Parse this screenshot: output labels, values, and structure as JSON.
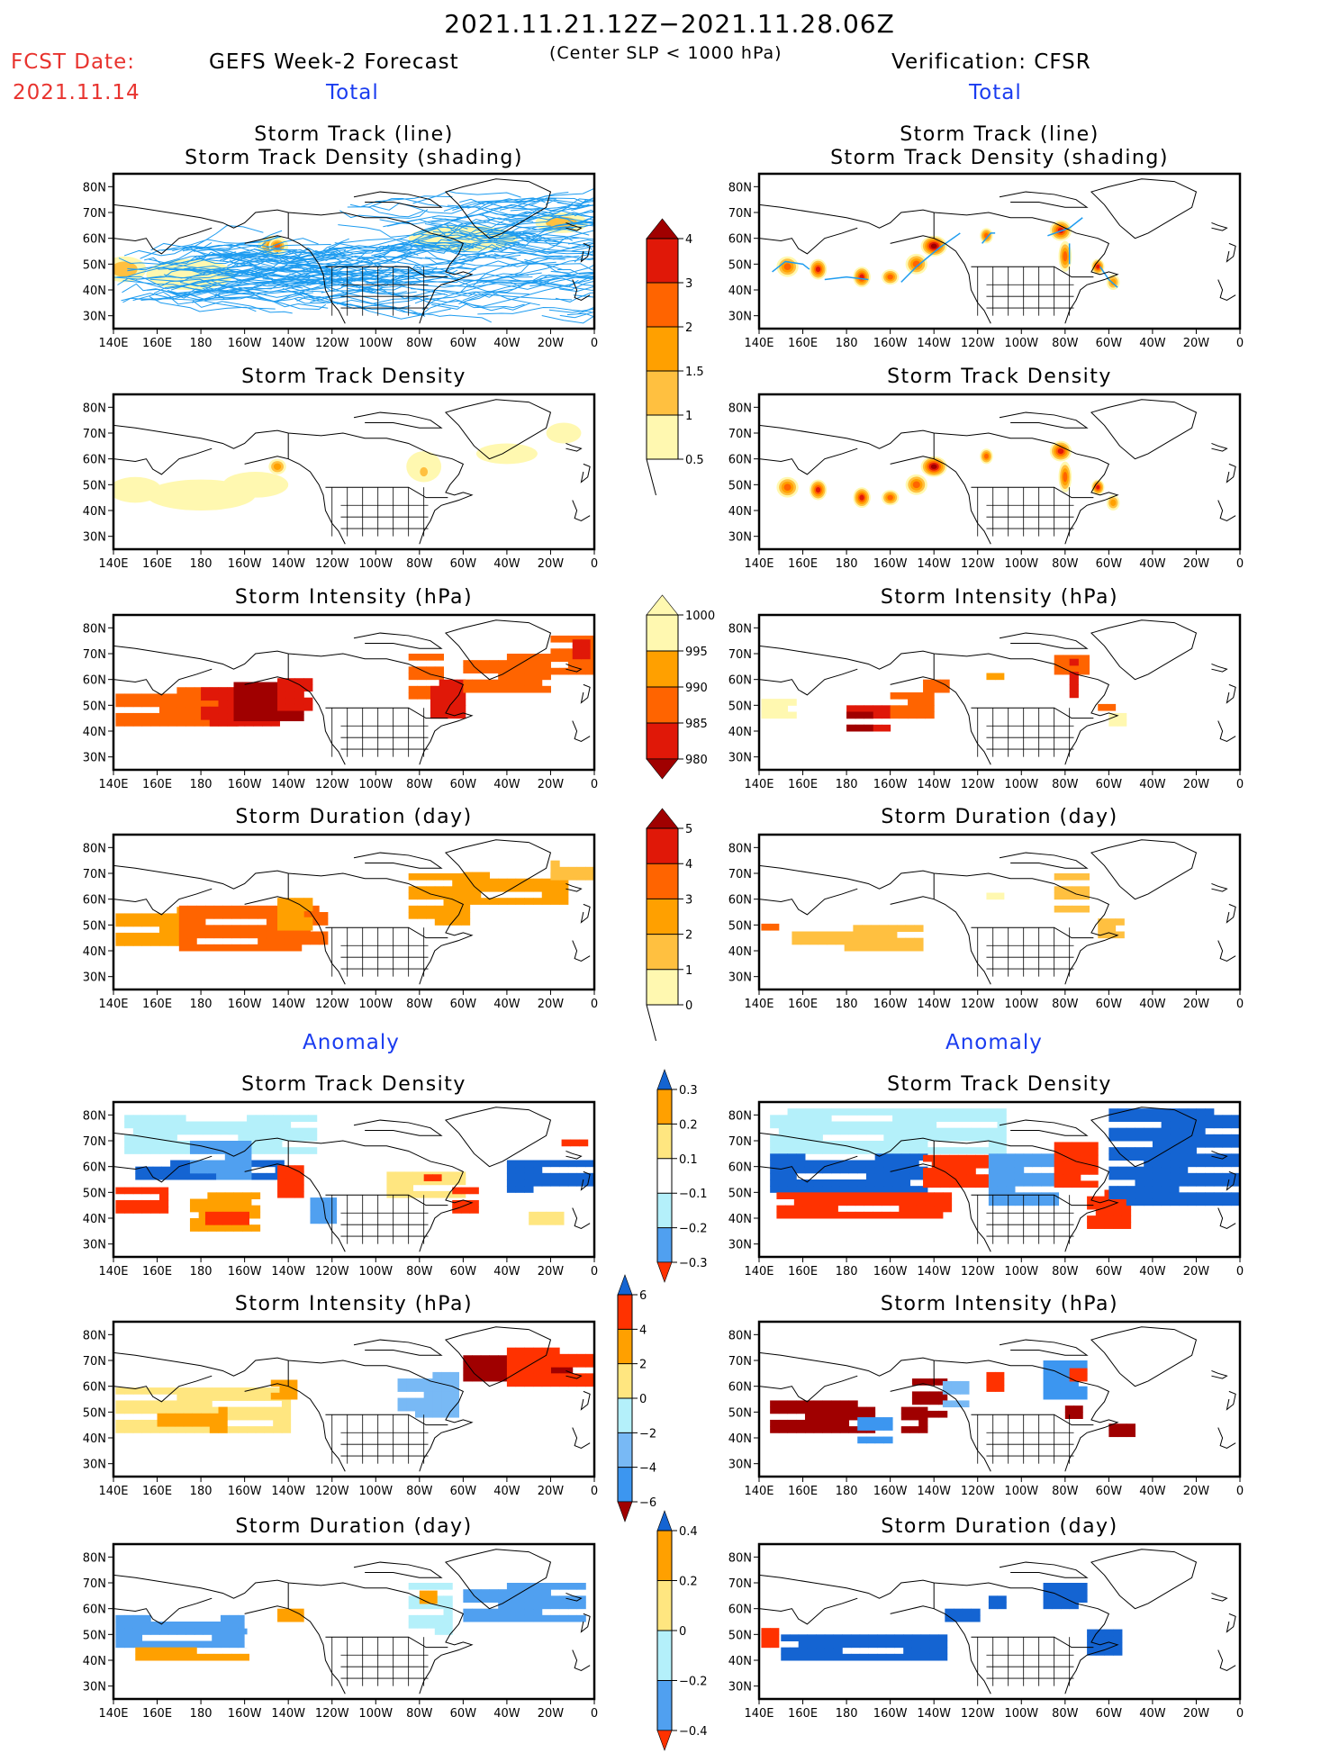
{
  "header": {
    "period": "2021.11.21.12Z−2021.11.28.06Z",
    "fcst_label": "FCST Date:",
    "fcst_date": "2021.11.14",
    "left_title": "GEFS Week-2 Forecast",
    "criterion": "(Center SLP < 1000 hPa)",
    "right_title": "Verification: CFSR",
    "total_left": "Total",
    "total_right": "Total",
    "anomaly_left": "Anomaly",
    "anomaly_right": "Anomaly"
  },
  "axes": {
    "lat_ticks": [
      "30N",
      "40N",
      "50N",
      "60N",
      "70N",
      "80N"
    ],
    "lat_values": [
      30,
      40,
      50,
      60,
      70,
      80
    ],
    "lon_ticks": [
      "140E",
      "160E",
      "180",
      "160W",
      "140W",
      "120W",
      "100W",
      "80W",
      "60W",
      "40W",
      "20W",
      "0"
    ],
    "lon_values": [
      140,
      160,
      180,
      200,
      220,
      240,
      260,
      280,
      300,
      320,
      340,
      360
    ],
    "lon_range": [
      140,
      360
    ],
    "lat_range": [
      25,
      85
    ]
  },
  "colors": {
    "track_line": "#1e9cf0",
    "scale_warm": [
      "#fff8b0",
      "#ffc040",
      "#ffa000",
      "#ff6400",
      "#e01808",
      "#a00000"
    ],
    "scale_anom": [
      "#1464d2",
      "#50a0f0",
      "#b4f0fa",
      "#ffffff",
      "#ffe680",
      "#ffa000",
      "#ff3200"
    ],
    "scale_anom6": [
      "#1464d2",
      "#3c96f0",
      "#78b9f5",
      "#b4f0fa",
      "#ffe680",
      "#ffa000",
      "#ff3200",
      "#a00000"
    ]
  },
  "colorbars": [
    {
      "name": "density",
      "labels": [
        "0.5",
        "1",
        "1.5",
        "2",
        "3",
        "4"
      ],
      "colors": [
        "#fff8b0",
        "#ffc040",
        "#ffa000",
        "#ff6400",
        "#e01808",
        "#a00000"
      ],
      "lower_open": true
    },
    {
      "name": "intensity",
      "labels": [
        "1000",
        "995",
        "990",
        "985",
        "980"
      ],
      "colors": [
        "#fff8b0",
        "#ffa000",
        "#ff6400",
        "#e01808",
        "#a00000"
      ],
      "reverse": true
    },
    {
      "name": "duration",
      "labels": [
        "0",
        "1",
        "2",
        "3",
        "4",
        "5"
      ],
      "colors": [
        "#fff8b0",
        "#ffc040",
        "#ffa000",
        "#ff6400",
        "#e01808",
        "#a00000"
      ],
      "lower_open": true
    },
    {
      "name": "density-anomaly",
      "labels": [
        "0.3",
        "0.2",
        "0.1",
        "−0.1",
        "−0.2",
        "−0.3"
      ],
      "colors": [
        "#ff3200",
        "#ffa000",
        "#ffe680",
        "#ffffff",
        "#b4f0fa",
        "#50a0f0",
        "#1464d2"
      ]
    },
    {
      "name": "intensity-anomaly",
      "labels": [
        "6",
        "4",
        "2",
        "0",
        "−2",
        "−4",
        "−6"
      ],
      "colors": [
        "#a00000",
        "#ff3200",
        "#ffa000",
        "#ffe680",
        "#b4f0fa",
        "#78b9f5",
        "#3c96f0",
        "#1464d2"
      ]
    },
    {
      "name": "duration-anomaly",
      "labels": [
        "0.4",
        "0.2",
        "0",
        "−0.2",
        "−0.4"
      ],
      "colors": [
        "#ff3200",
        "#ffa000",
        "#ffe680",
        "#b4f0fa",
        "#50a0f0",
        "#1464d2"
      ]
    }
  ],
  "chart_data": [
    {
      "type": "heatmap",
      "panel": "fcst-track",
      "title": "Storm Track (line)\nStorm Track Density (shading)",
      "title1": "Storm Track (line)",
      "title2": "Storm Track Density (shading)",
      "tracks": "many",
      "blobs": [
        [
          145,
          48,
          10,
          5,
          1
        ],
        [
          175,
          46,
          20,
          6,
          0
        ],
        [
          213,
          57,
          7,
          4,
          2
        ],
        [
          215,
          57,
          4,
          3,
          3
        ],
        [
          300,
          60,
          25,
          5,
          0
        ],
        [
          345,
          66,
          12,
          4,
          1
        ]
      ]
    },
    {
      "type": "heatmap",
      "panel": "obs-track",
      "title1": "Storm Track (line)",
      "title2": "Storm Track Density (shading)",
      "blobs": [
        [
          153,
          49,
          5,
          4,
          3
        ],
        [
          167,
          48,
          4,
          4,
          4
        ],
        [
          187,
          45,
          4,
          4,
          4
        ],
        [
          200,
          45,
          4,
          3,
          3
        ],
        [
          212,
          50,
          5,
          4,
          3
        ],
        [
          220,
          57,
          6,
          4,
          5
        ],
        [
          244,
          61,
          3,
          3,
          3
        ],
        [
          278,
          63,
          5,
          4,
          4
        ],
        [
          280,
          53,
          3,
          6,
          3
        ],
        [
          295,
          49,
          3,
          3,
          4
        ],
        [
          302,
          43,
          3,
          3,
          2
        ]
      ],
      "tracks": [
        [
          [
            146,
            47
          ],
          [
            152,
            51
          ],
          [
            160,
            50
          ],
          [
            163,
            48
          ]
        ],
        [
          [
            170,
            44
          ],
          [
            180,
            45
          ],
          [
            190,
            44
          ]
        ],
        [
          [
            205,
            43
          ],
          [
            212,
            49
          ],
          [
            222,
            56
          ],
          [
            232,
            62
          ]
        ],
        [
          [
            242,
            58
          ],
          [
            246,
            62
          ],
          [
            248,
            62
          ]
        ],
        [
          [
            272,
            61
          ],
          [
            282,
            64
          ],
          [
            288,
            68
          ]
        ],
        [
          [
            282,
            58
          ],
          [
            282,
            50
          ]
        ],
        [
          [
            296,
            49
          ],
          [
            300,
            44
          ],
          [
            304,
            41
          ]
        ]
      ]
    },
    {
      "type": "heatmap",
      "panel": "fcst-density",
      "title": "Storm Track Density",
      "blobs": [
        [
          150,
          48,
          12,
          5,
          0
        ],
        [
          180,
          46,
          25,
          6,
          0
        ],
        [
          205,
          50,
          15,
          5,
          0
        ],
        [
          215,
          57,
          4,
          3,
          2
        ],
        [
          282,
          57,
          8,
          6,
          0
        ],
        [
          282,
          55,
          3,
          3,
          1
        ],
        [
          320,
          62,
          14,
          4,
          0
        ],
        [
          346,
          70,
          8,
          4,
          0
        ]
      ]
    },
    {
      "type": "heatmap",
      "panel": "obs-density",
      "title": "Storm Track Density",
      "blobs": [
        [
          153,
          49,
          5,
          4,
          3
        ],
        [
          167,
          48,
          4,
          4,
          4
        ],
        [
          187,
          45,
          4,
          4,
          4
        ],
        [
          200,
          45,
          4,
          3,
          3
        ],
        [
          212,
          50,
          5,
          4,
          3
        ],
        [
          220,
          57,
          6,
          4,
          5
        ],
        [
          244,
          61,
          3,
          3,
          3
        ],
        [
          278,
          63,
          5,
          4,
          4
        ],
        [
          280,
          53,
          3,
          6,
          3
        ],
        [
          295,
          49,
          3,
          3,
          4
        ],
        [
          302,
          43,
          3,
          3,
          2
        ]
      ]
    },
    {
      "type": "heatmap",
      "panel": "fcst-intensity",
      "title": "Storm Intensity (hPa)",
      "cells": [
        [
          141,
          195,
          42,
          57,
          2
        ],
        [
          180,
          215,
          42,
          57,
          3
        ],
        [
          195,
          225,
          44,
          57,
          4
        ],
        [
          215,
          230,
          48,
          60,
          3
        ],
        [
          275,
          290,
          50,
          68,
          2
        ],
        [
          285,
          300,
          45,
          60,
          3
        ],
        [
          300,
          340,
          55,
          68,
          2
        ],
        [
          340,
          357,
          62,
          75,
          2
        ],
        [
          350,
          357,
          68,
          75,
          3
        ]
      ]
    },
    {
      "type": "heatmap",
      "panel": "obs-intensity",
      "title": "Storm Intensity (hPa)",
      "cells": [
        [
          141,
          155,
          45,
          52,
          0
        ],
        [
          180,
          200,
          40,
          50,
          3
        ],
        [
          180,
          190,
          40,
          46,
          4
        ],
        [
          200,
          220,
          45,
          55,
          2
        ],
        [
          215,
          225,
          55,
          62,
          2
        ],
        [
          244,
          250,
          60,
          64,
          1
        ],
        [
          275,
          290,
          62,
          68,
          2
        ],
        [
          282,
          286,
          53,
          68,
          3
        ],
        [
          295,
          300,
          48,
          52,
          2
        ],
        [
          300,
          305,
          42,
          47,
          0
        ]
      ]
    },
    {
      "type": "heatmap",
      "panel": "fcst-duration",
      "title": "Storm Duration (day)",
      "cells": [
        [
          141,
          170,
          42,
          57,
          2
        ],
        [
          170,
          235,
          40,
          57,
          3
        ],
        [
          215,
          230,
          48,
          60,
          2
        ],
        [
          275,
          300,
          50,
          68,
          2
        ],
        [
          300,
          345,
          58,
          70,
          2
        ],
        [
          340,
          358,
          65,
          75,
          1
        ]
      ]
    },
    {
      "type": "heatmap",
      "panel": "obs-duration",
      "title": "Storm Duration (day)",
      "cells": [
        [
          141,
          148,
          48,
          53,
          3
        ],
        [
          155,
          215,
          40,
          48,
          1
        ],
        [
          244,
          250,
          60,
          64,
          0
        ],
        [
          275,
          290,
          55,
          68,
          1
        ],
        [
          295,
          305,
          45,
          52,
          1
        ]
      ]
    },
    {
      "type": "heatmap",
      "panel": "fcst-density-anomaly",
      "title": "Storm Track Density",
      "cells": [
        [
          145,
          230,
          65,
          80,
          2
        ],
        [
          150,
          215,
          55,
          62,
          0
        ],
        [
          175,
          200,
          55,
          68,
          1
        ],
        [
          141,
          165,
          42,
          50,
          6
        ],
        [
          175,
          205,
          35,
          48,
          5
        ],
        [
          182,
          200,
          35,
          45,
          6
        ],
        [
          215,
          225,
          48,
          60,
          6
        ],
        [
          230,
          240,
          38,
          46,
          1
        ],
        [
          265,
          300,
          48,
          56,
          4
        ],
        [
          282,
          288,
          52,
          55,
          6
        ],
        [
          295,
          305,
          42,
          50,
          6
        ],
        [
          320,
          360,
          50,
          62,
          0
        ],
        [
          330,
          345,
          35,
          42,
          4
        ],
        [
          345,
          357,
          68,
          72,
          6
        ]
      ]
    },
    {
      "type": "heatmap",
      "panel": "obs-density-anomaly",
      "title": "Storm Track Density",
      "cells": [
        [
          145,
          250,
          65,
          82,
          2
        ],
        [
          145,
          215,
          50,
          64,
          0
        ],
        [
          215,
          245,
          52,
          64,
          6
        ],
        [
          148,
          225,
          40,
          50,
          6
        ],
        [
          245,
          275,
          45,
          65,
          1
        ],
        [
          275,
          295,
          52,
          68,
          6
        ],
        [
          290,
          310,
          36,
          50,
          6
        ],
        [
          300,
          360,
          45,
          82,
          0
        ]
      ]
    },
    {
      "type": "heatmap",
      "panel": "fcst-intensity-anomaly",
      "title": "Storm Intensity (hPa)",
      "cells": [
        [
          141,
          220,
          42,
          58,
          4
        ],
        [
          160,
          190,
          42,
          52,
          5
        ],
        [
          212,
          222,
          55,
          62,
          5
        ],
        [
          270,
          295,
          48,
          65,
          2
        ],
        [
          300,
          340,
          62,
          72,
          7
        ],
        [
          330,
          350,
          64,
          70,
          7
        ],
        [
          320,
          357,
          60,
          75,
          6
        ]
      ]
    },
    {
      "type": "heatmap",
      "panel": "obs-intensity-anomaly",
      "title": "Storm Intensity (hPa)",
      "cells": [
        [
          145,
          190,
          42,
          54,
          7
        ],
        [
          185,
          200,
          38,
          48,
          1
        ],
        [
          205,
          215,
          42,
          52,
          7
        ],
        [
          210,
          225,
          48,
          62,
          7
        ],
        [
          224,
          235,
          52,
          62,
          2
        ],
        [
          244,
          250,
          58,
          64,
          6
        ],
        [
          270,
          290,
          55,
          68,
          1
        ],
        [
          282,
          288,
          62,
          68,
          6
        ],
        [
          280,
          286,
          45,
          52,
          7
        ],
        [
          300,
          310,
          38,
          46,
          7
        ]
      ]
    },
    {
      "type": "heatmap",
      "panel": "fcst-duration-anomaly",
      "title": "Storm Duration (day)",
      "cells": [
        [
          141,
          200,
          45,
          56,
          1
        ],
        [
          150,
          200,
          40,
          45,
          5
        ],
        [
          200,
          230,
          45,
          60,
          3
        ],
        [
          215,
          225,
          55,
          62,
          5
        ],
        [
          275,
          295,
          50,
          68,
          2
        ],
        [
          280,
          285,
          62,
          66,
          5
        ],
        [
          300,
          355,
          55,
          70,
          1
        ]
      ]
    },
    {
      "type": "heatmap",
      "panel": "obs-duration-anomaly",
      "title": "Storm Duration (day)",
      "cells": [
        [
          141,
          148,
          45,
          52,
          6
        ],
        [
          150,
          225,
          40,
          50,
          0
        ],
        [
          225,
          240,
          55,
          62,
          0
        ],
        [
          245,
          250,
          60,
          64,
          0
        ],
        [
          270,
          290,
          60,
          68,
          0
        ],
        [
          290,
          305,
          42,
          50,
          0
        ]
      ]
    }
  ]
}
